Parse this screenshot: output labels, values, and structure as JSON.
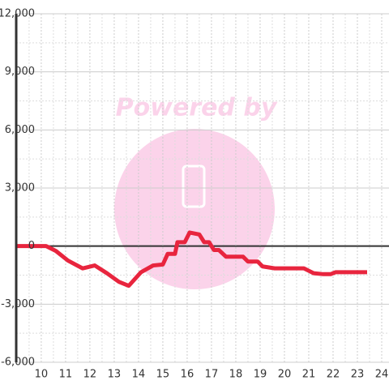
{
  "chart_data": {
    "type": "line",
    "watermark": "Powered by",
    "x": [
      9.0,
      10.2,
      10.6,
      11.1,
      11.7,
      12.2,
      12.7,
      13.2,
      13.6,
      14.1,
      14.6,
      15.0,
      15.2,
      15.5,
      15.6,
      15.9,
      16.1,
      16.5,
      16.7,
      16.9,
      17.1,
      17.3,
      17.6,
      18.3,
      18.5,
      18.9,
      19.1,
      19.6,
      20.8,
      21.2,
      21.6,
      21.9,
      22.1,
      23.4
    ],
    "series": [
      {
        "color": "#e8253e",
        "values": [
          0,
          0,
          -250,
          -750,
          -1150,
          -1000,
          -1400,
          -1850,
          -2050,
          -1350,
          -1000,
          -950,
          -400,
          -400,
          200,
          200,
          700,
          600,
          200,
          200,
          -200,
          -200,
          -550,
          -550,
          -800,
          -800,
          -1050,
          -1150,
          -1150,
          -1400,
          -1450,
          -1450,
          -1350,
          -1350
        ]
      }
    ],
    "xlim": [
      8.97,
      24.3
    ],
    "ylim": [
      -6000,
      12000
    ],
    "xticks": [
      10,
      11,
      12,
      13,
      14,
      15,
      16,
      17,
      18,
      19,
      20,
      21,
      22,
      23,
      24
    ],
    "x_minor_ticks": [
      9.5,
      10.5,
      11.5,
      12.5,
      13.5,
      14.5,
      15.5,
      16.5,
      17.5,
      18.5,
      19.5,
      20.5,
      21.5,
      22.5,
      23.5
    ],
    "yticks": [
      {
        "value": -6000,
        "label": "-6,000"
      },
      {
        "value": -3000,
        "label": "-3,000"
      },
      0,
      {
        "value": 3000,
        "label": "3,000"
      },
      {
        "value": 6000,
        "label": "6,000"
      },
      {
        "value": 9000,
        "label": "9,000"
      },
      {
        "value": 12000,
        "label": "12,000"
      }
    ],
    "y_minor_ticks": [
      -4500,
      -1500,
      1500,
      4500,
      7500,
      10500
    ],
    "grid": true
  }
}
